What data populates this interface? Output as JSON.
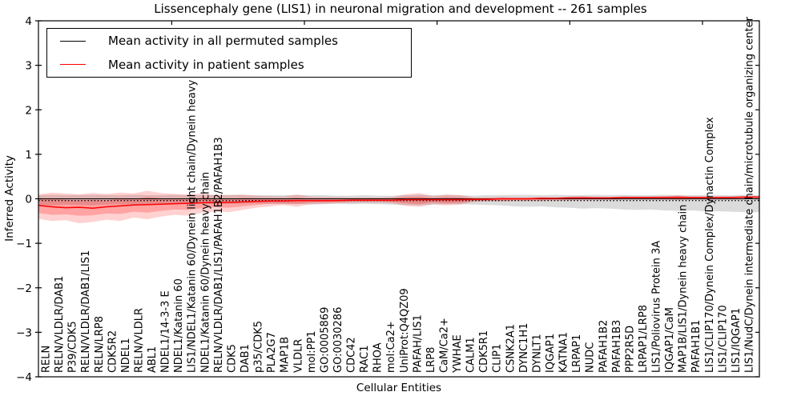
{
  "title": "Lissencephaly gene (LIS1) in neuronal migration and development -- 261 samples",
  "axes": {
    "ylabel": "Inferred Activity",
    "xlabel": "Cellular Entities",
    "yticks": [
      {
        "v": 4,
        "label": "4"
      },
      {
        "v": 3,
        "label": "3"
      },
      {
        "v": 2,
        "label": "2"
      },
      {
        "v": 1,
        "label": "1"
      },
      {
        "v": 0,
        "label": "0"
      },
      {
        "v": -1,
        "label": "−1"
      },
      {
        "v": -2,
        "label": "−2"
      },
      {
        "v": -3,
        "label": "−3"
      },
      {
        "v": -4,
        "label": "−4"
      }
    ]
  },
  "legend": {
    "items": [
      {
        "label": "Mean activity in all permuted samples",
        "color": "#000000"
      },
      {
        "label": "Mean activity in patient samples",
        "color": "#ff0000"
      }
    ]
  },
  "chart_data": {
    "type": "line",
    "title": "Lissencephaly gene (LIS1) in neuronal migration and development -- 261 samples",
    "xlabel": "Cellular Entities",
    "ylabel": "Inferred Activity",
    "ylim": [
      -4,
      4
    ],
    "grid": false,
    "legend_position": "upper left",
    "categories": [
      "RELN",
      "RELN/VLDLR/DAB1",
      "P39/CDK5",
      "RELN/VLDLR/DAB1/LIS1",
      "RELN/LRP8",
      "CDK5R2",
      "NDEL1",
      "RELN/VLDLR",
      "ABL1",
      "NDEL1/14-3-3 E",
      "NDEL1/Katanin 60",
      "LIS1/NDEL1/Katanin 60/Dynein light chain/Dynein heavy chain",
      "NDEL1/Katanin 60/Dynein heavy chain",
      "RELN/VLDLR/DAB1/LIS1/PAFAH1B2/PAFAH1B3",
      "CDK5",
      "DAB1",
      "p35/CDK5",
      "PLA2G7",
      "MAP1B",
      "VLDLR",
      "mol:PP1",
      "GO:0005869",
      "GO:0030286",
      "CDC42",
      "RAC1",
      "RHOA",
      "mol:Ca2+",
      "UniProt:Q4QZ09",
      "PAFAH/LIS1",
      "LRP8",
      "CaM/Ca2+",
      "YWHAE",
      "CALM1",
      "CDK5R1",
      "CLIP1",
      "CSNK2A1",
      "DYNC1H1",
      "DYNLT1",
      "IQGAP1",
      "KATNA1",
      "LRPAP1",
      "NUDC",
      "PAFAH1B2",
      "PAFAH1B3",
      "PPP2R5D",
      "LRPAP1/LRP8",
      "LIS1/Poliovirus Protein 3A",
      "IQGAP1/CaM",
      "MAP1B/LIS1/Dynein heavy chain",
      "PAFAH1B1",
      "LIS1/CLIP170/Dynein Complex/Dynactin Complex",
      "LIS1/CLIP170",
      "LIS1/IQGAP1",
      "LIS1/NudC/Dynein intermediate chain/microtubule organizing center"
    ],
    "series": [
      {
        "name": "Mean activity in all permuted samples",
        "color": "#000000",
        "style": "solid",
        "constant": 0.0
      },
      {
        "name": "dotted overlay line",
        "color": "#000000",
        "style": "dotted",
        "constant": -0.04
      },
      {
        "name": "Mean activity in patient samples",
        "color": "#ff0000",
        "style": "solid",
        "values": [
          -0.15,
          -0.18,
          -0.2,
          -0.19,
          -0.21,
          -0.18,
          -0.16,
          -0.14,
          -0.13,
          -0.12,
          -0.11,
          -0.1,
          -0.09,
          -0.08,
          -0.08,
          -0.07,
          -0.06,
          -0.05,
          -0.05,
          -0.04,
          -0.04,
          -0.04,
          -0.04,
          -0.03,
          -0.03,
          -0.03,
          -0.03,
          -0.02,
          -0.02,
          -0.02,
          -0.02,
          -0.02,
          -0.01,
          -0.01,
          0.0,
          0.0,
          0.0,
          0.01,
          0.01,
          0.02,
          0.02,
          0.02,
          0.02,
          0.03,
          0.03,
          0.03,
          0.03,
          0.03,
          0.03,
          0.03,
          0.03,
          0.03,
          0.04,
          0.04
        ]
      }
    ],
    "bands": [
      {
        "name": "permuted samples spread",
        "color": "#999999",
        "opacity": 0.35,
        "top": [
          0.08,
          0.09,
          0.08,
          0.08,
          0.09,
          0.08,
          0.08,
          0.09,
          0.08,
          0.08,
          0.09,
          0.08,
          0.08,
          0.08,
          0.09,
          0.08,
          0.08,
          0.08,
          0.08,
          0.08,
          0.08,
          0.08,
          0.07,
          0.07,
          0.08,
          0.07,
          0.07,
          0.08,
          0.09,
          0.08,
          0.08,
          0.08,
          0.07,
          0.08,
          0.08,
          0.09,
          0.09,
          0.08,
          0.09,
          0.08,
          0.08,
          0.09,
          0.08,
          0.09,
          0.08,
          0.08,
          0.09,
          0.08,
          0.08,
          0.09,
          0.08,
          0.08,
          0.09,
          0.08
        ],
        "bottom": [
          -0.14,
          -0.15,
          -0.13,
          -0.14,
          -0.15,
          -0.13,
          -0.12,
          -0.13,
          -0.12,
          -0.12,
          -0.12,
          -0.11,
          -0.11,
          -0.12,
          -0.11,
          -0.11,
          -0.1,
          -0.11,
          -0.12,
          -0.11,
          -0.13,
          -0.12,
          -0.11,
          -0.12,
          -0.11,
          -0.12,
          -0.13,
          -0.14,
          -0.15,
          -0.13,
          -0.12,
          -0.12,
          -0.13,
          -0.14,
          -0.15,
          -0.17,
          -0.18,
          -0.17,
          -0.19,
          -0.2,
          -0.22,
          -0.21,
          -0.22,
          -0.24,
          -0.25,
          -0.24,
          -0.26,
          -0.27,
          -0.26,
          -0.28,
          -0.28,
          -0.29,
          -0.3,
          -0.3
        ]
      },
      {
        "name": "patient samples spread (outer)",
        "color": "#ff0000",
        "opacity": 0.18,
        "top": [
          0.1,
          0.14,
          0.12,
          0.1,
          0.13,
          0.11,
          0.14,
          0.12,
          0.18,
          0.13,
          0.11,
          0.1,
          0.12,
          0.09,
          0.08,
          0.1,
          0.07,
          0.06,
          0.05,
          0.1,
          0.05,
          0.04,
          0.04,
          0.03,
          0.03,
          0.03,
          0.04,
          0.1,
          0.13,
          0.06,
          0.1,
          0.08,
          0.03,
          0.03,
          0.04,
          0.03,
          0.03,
          0.04,
          0.03,
          0.05,
          0.06,
          0.04,
          0.04,
          0.05,
          0.04,
          0.05,
          0.06,
          0.08,
          0.05,
          0.05,
          0.05,
          0.05,
          0.06,
          0.06
        ],
        "bottom": [
          -0.45,
          -0.5,
          -0.48,
          -0.55,
          -0.52,
          -0.47,
          -0.5,
          -0.42,
          -0.46,
          -0.4,
          -0.36,
          -0.38,
          -0.32,
          -0.28,
          -0.3,
          -0.25,
          -0.2,
          -0.17,
          -0.14,
          -0.18,
          -0.12,
          -0.11,
          -0.1,
          -0.09,
          -0.09,
          -0.09,
          -0.1,
          -0.16,
          -0.18,
          -0.12,
          -0.15,
          -0.13,
          -0.07,
          -0.06,
          -0.06,
          -0.05,
          -0.05,
          -0.05,
          -0.04,
          -0.04,
          -0.03,
          -0.03,
          -0.03,
          -0.02,
          -0.02,
          -0.02,
          -0.02,
          -0.03,
          -0.02,
          -0.02,
          -0.02,
          -0.02,
          -0.01,
          -0.01
        ]
      },
      {
        "name": "patient samples spread (inner)",
        "color": "#ff0000",
        "opacity": 0.22,
        "top": [
          -0.01,
          0.0,
          -0.02,
          -0.03,
          -0.02,
          -0.03,
          0.0,
          -0.01,
          0.04,
          0.01,
          0.0,
          0.0,
          0.02,
          0.01,
          0.0,
          0.02,
          0.01,
          0.0,
          0.0,
          0.03,
          0.0,
          0.0,
          0.0,
          0.0,
          0.0,
          0.0,
          0.01,
          0.04,
          0.05,
          0.02,
          0.04,
          0.03,
          0.01,
          0.01,
          0.02,
          0.02,
          0.02,
          0.02,
          0.02,
          0.03,
          0.04,
          0.03,
          0.03,
          0.04,
          0.04,
          0.04,
          0.04,
          0.06,
          0.04,
          0.04,
          0.04,
          0.04,
          0.05,
          0.05
        ],
        "bottom": [
          -0.32,
          -0.36,
          -0.35,
          -0.38,
          -0.37,
          -0.33,
          -0.34,
          -0.29,
          -0.31,
          -0.27,
          -0.24,
          -0.25,
          -0.21,
          -0.19,
          -0.2,
          -0.17,
          -0.14,
          -0.11,
          -0.1,
          -0.12,
          -0.08,
          -0.08,
          -0.07,
          -0.06,
          -0.06,
          -0.06,
          -0.07,
          -0.1,
          -0.12,
          -0.08,
          -0.1,
          -0.09,
          -0.05,
          -0.04,
          -0.04,
          -0.03,
          -0.03,
          -0.03,
          -0.02,
          -0.02,
          -0.01,
          -0.01,
          -0.01,
          0.0,
          0.0,
          0.0,
          0.0,
          -0.01,
          0.0,
          0.0,
          0.0,
          0.0,
          0.01,
          0.01
        ]
      }
    ]
  }
}
